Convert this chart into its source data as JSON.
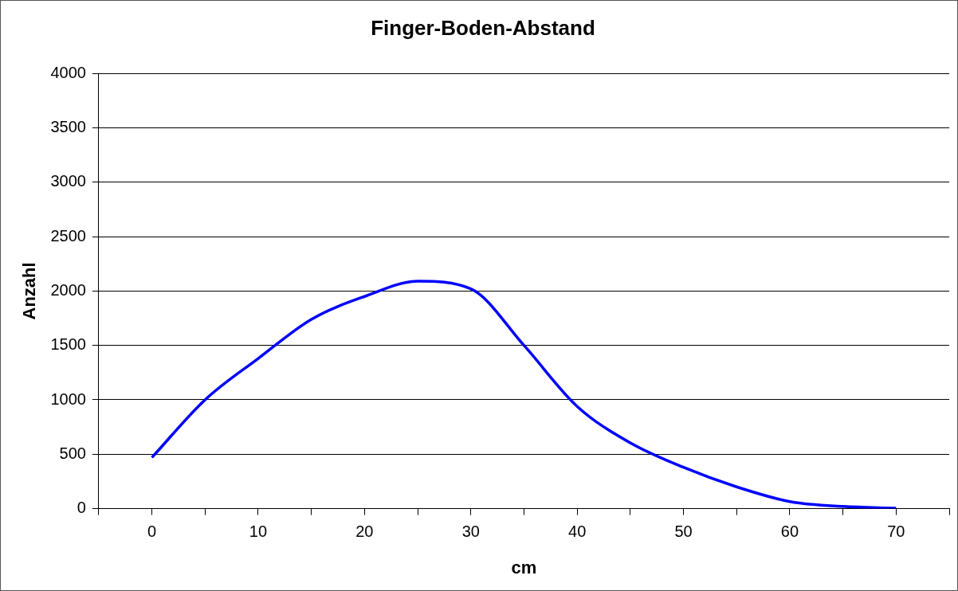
{
  "chart_data": {
    "type": "line",
    "title": "Finger-Boden-Abstand",
    "xlabel": "cm",
    "ylabel": "Anzahl",
    "x": [
      0,
      5,
      10,
      15,
      20,
      25,
      30,
      35,
      40,
      45,
      50,
      55,
      60,
      65,
      70
    ],
    "series": [
      {
        "color": "#0000ff",
        "values": [
          470,
          1000,
          1380,
          1740,
          1950,
          2090,
          2020,
          1500,
          940,
          605,
          380,
          200,
          65,
          20,
          5
        ]
      }
    ],
    "xlim": [
      -5,
      75
    ],
    "xticks": [
      {
        "value": -5,
        "label": null
      },
      0,
      {
        "value": 5,
        "label": null
      },
      10,
      {
        "value": 15,
        "label": null
      },
      20,
      {
        "value": 25,
        "label": null
      },
      30,
      {
        "value": 35,
        "label": null
      },
      40,
      {
        "value": 45,
        "label": null
      },
      50,
      {
        "value": 55,
        "label": null
      },
      60,
      {
        "value": 65,
        "label": null
      },
      70,
      {
        "value": 75,
        "label": null
      }
    ],
    "ylim": [
      0,
      4000
    ],
    "yticks": [
      0,
      500,
      1000,
      1500,
      2000,
      2500,
      3000,
      3500,
      4000
    ],
    "grid": "y",
    "legend": false,
    "marker": "none",
    "line_style": "solid"
  }
}
